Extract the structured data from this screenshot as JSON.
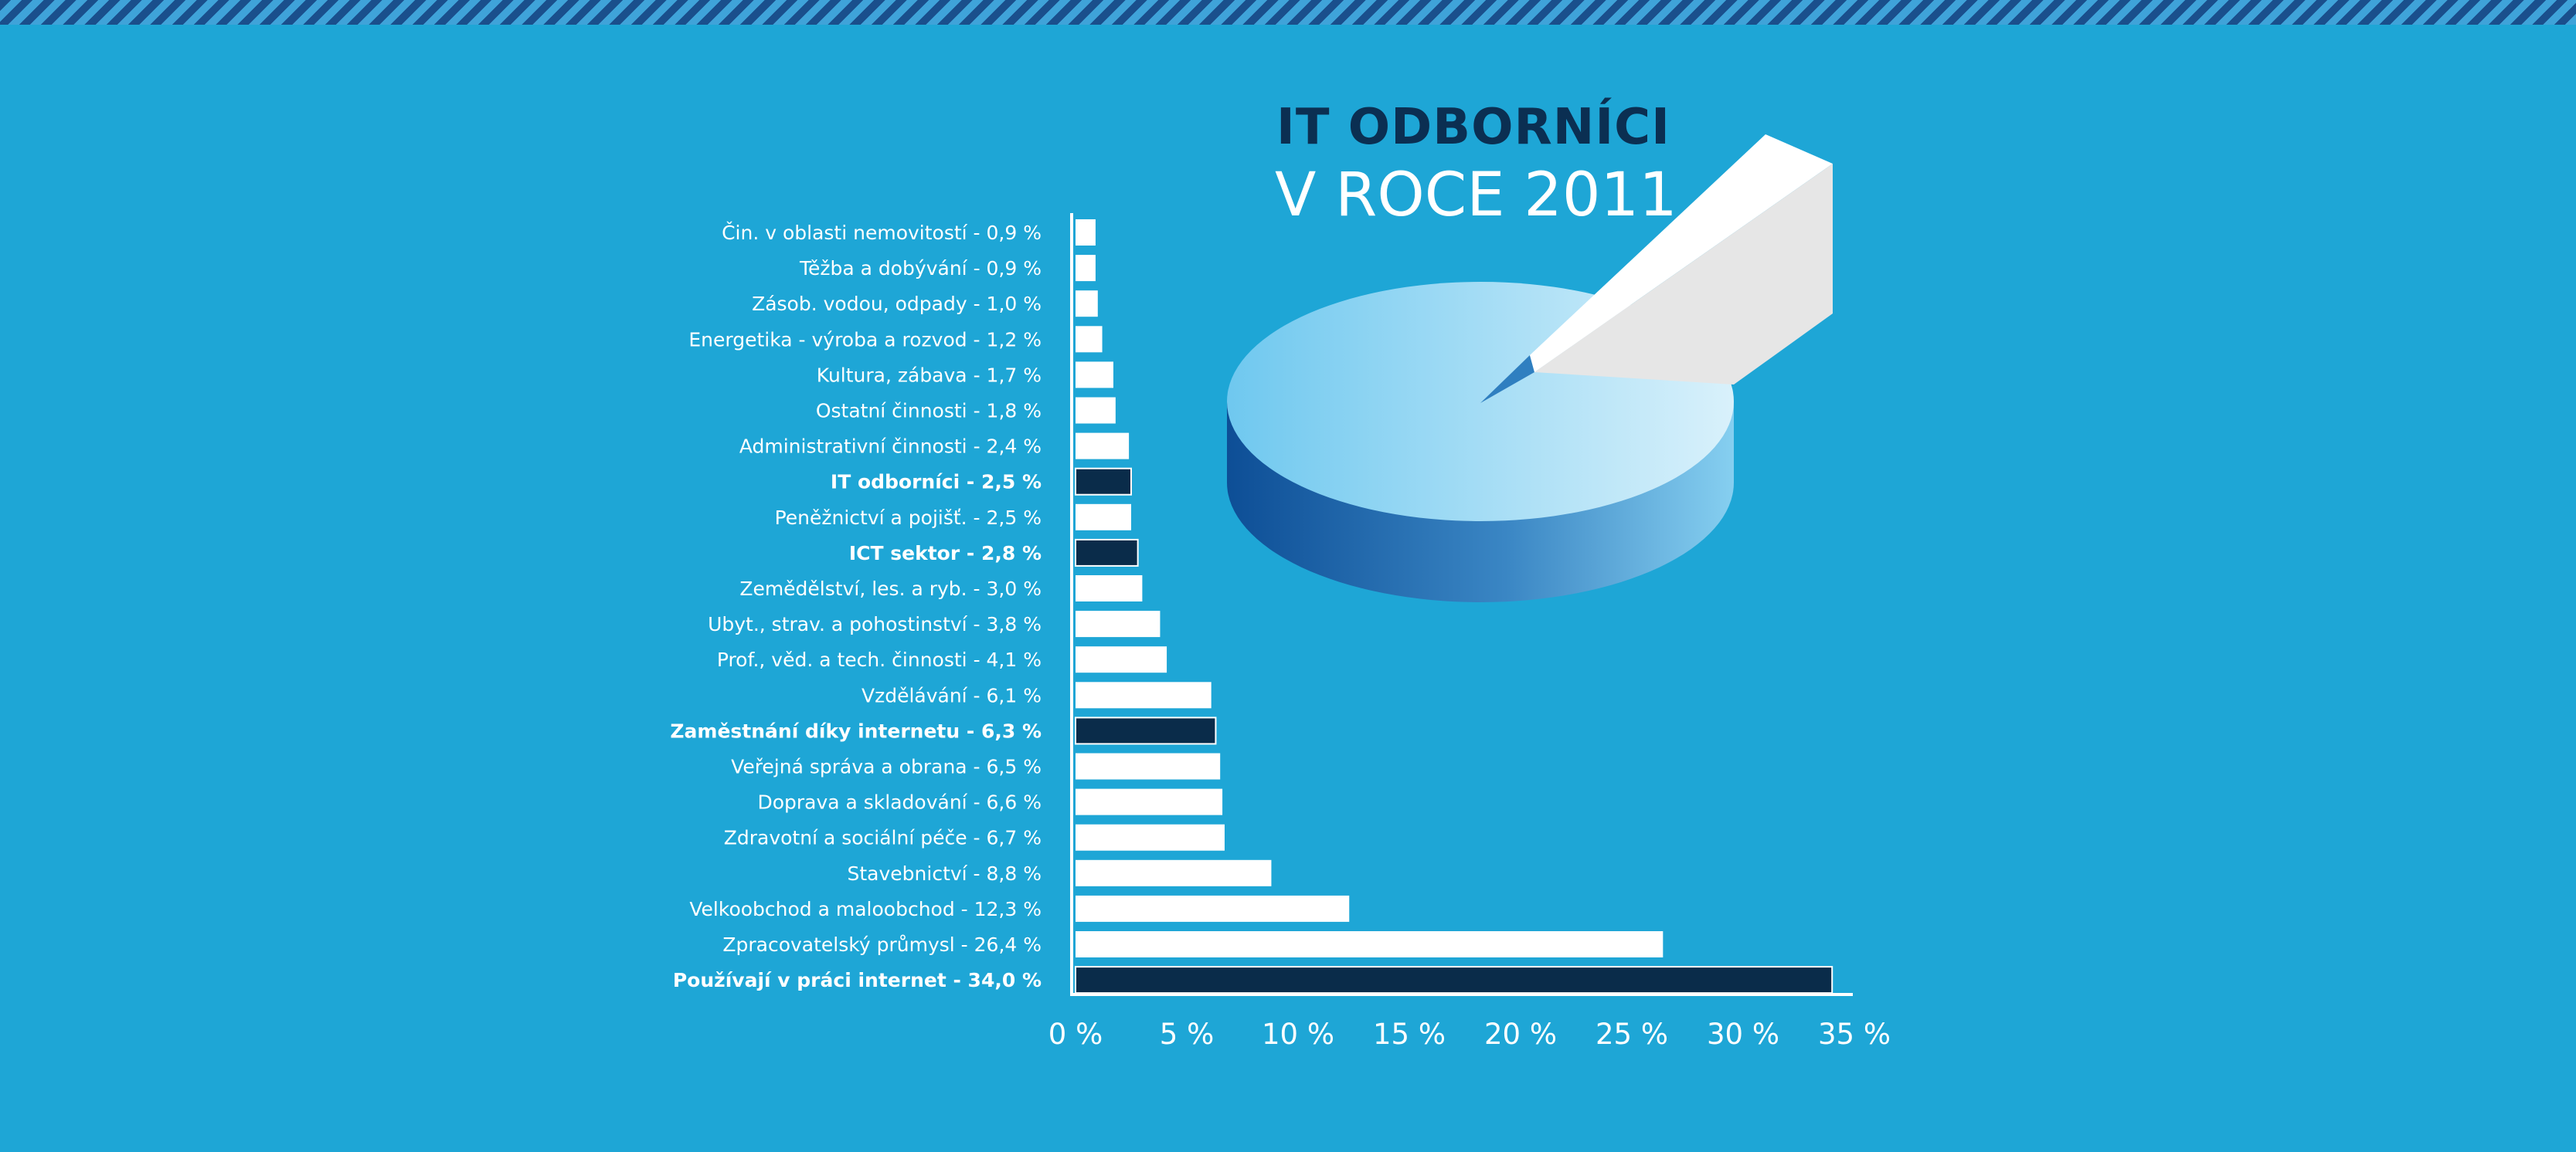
{
  "chart_data": {
    "type": "bar",
    "orientation": "horizontal",
    "title": "IT ODBORNÍCI",
    "subtitle": "V ROCE 2011",
    "xlabel": "",
    "ylabel": "",
    "xlim": [
      0,
      35
    ],
    "x_ticks": [
      "0 %",
      "5 %",
      "10 %",
      "15 %",
      "20 %",
      "25 %",
      "30 %",
      "35 %"
    ],
    "grid": false,
    "legend": "none",
    "colors": {
      "background": "#1ea6d6",
      "bar": "#ffffff",
      "highlight": "#0a2c4a",
      "title_dark": "#0b2f52"
    },
    "categories": [
      "Čin. v oblasti nemovitostí - 0,9 %",
      "Těžba a dobývání - 0,9 %",
      "Zásob. vodou, odpady - 1,0 %",
      "Energetika - výroba a rozvod - 1,2 %",
      "Kultura, zábava - 1,7 %",
      "Ostatní činnosti - 1,8 %",
      "Administrativní činnosti - 2,4 %",
      "IT odborníci - 2,5 %",
      "Peněžnictví a pojišť. - 2,5 %",
      "ICT sektor - 2,8 %",
      "Zemědělství, les. a ryb. - 3,0 %",
      "Ubyt., strav. a pohostinství - 3,8 %",
      "Prof., věd. a tech. činnosti - 4,1 %",
      "Vzdělávání - 6,1 %",
      "Zaměstnání díky internetu - 6,3 %",
      "Veřejná správa a obrana - 6,5 %",
      "Doprava a skladování - 6,6 %",
      "Zdravotní a sociální péče - 6,7 %",
      "Stavebnictví - 8,8 %",
      "Velkoobchod a maloobchod - 12,3 %",
      "Zpracovatelský průmysl - 26,4 %",
      "Používají v práci internet - 34,0 %"
    ],
    "values": [
      0.9,
      0.9,
      1.0,
      1.2,
      1.7,
      1.8,
      2.4,
      2.5,
      2.5,
      2.8,
      3.0,
      3.8,
      4.1,
      6.1,
      6.3,
      6.5,
      6.6,
      6.7,
      8.8,
      12.3,
      26.4,
      34.0
    ],
    "highlighted": [
      false,
      false,
      false,
      false,
      false,
      false,
      false,
      true,
      false,
      true,
      false,
      false,
      false,
      false,
      true,
      false,
      false,
      false,
      false,
      false,
      false,
      true
    ]
  }
}
